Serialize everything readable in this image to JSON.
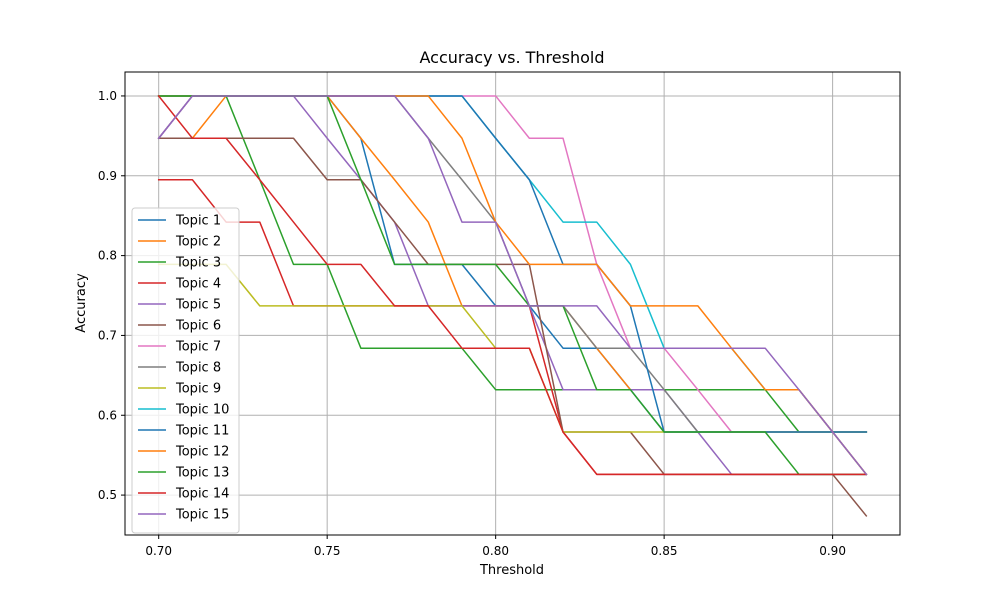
{
  "chart_data": {
    "type": "line",
    "title": "Accuracy vs. Threshold",
    "xlabel": "Threshold",
    "ylabel": "Accuracy",
    "xlim": [
      0.69,
      0.92
    ],
    "ylim": [
      0.45,
      1.03
    ],
    "xticks": [
      "0.70",
      "0.75",
      "0.80",
      "0.85",
      "0.90"
    ],
    "yticks": [
      "0.5",
      "0.6",
      "0.7",
      "0.8",
      "0.9",
      "1.0"
    ],
    "grid": true,
    "legend_position": "left",
    "x": [
      0.7,
      0.71,
      0.72,
      0.73,
      0.74,
      0.75,
      0.76,
      0.77,
      0.78,
      0.79,
      0.8,
      0.81,
      0.82,
      0.83,
      0.84,
      0.85,
      0.86,
      0.87,
      0.88,
      0.89,
      0.9,
      0.91
    ],
    "series": [
      {
        "name": "Topic 1",
        "color": "#1f77b4",
        "values": [
          1.0,
          1.0,
          1.0,
          1.0,
          1.0,
          1.0,
          0.947,
          0.789,
          0.789,
          0.789,
          0.737,
          0.737,
          0.684,
          0.684,
          0.632,
          0.579,
          0.579,
          0.579,
          0.579,
          0.579,
          0.579,
          0.579
        ]
      },
      {
        "name": "Topic 2",
        "color": "#ff7f0e",
        "values": [
          0.947,
          0.947,
          1.0,
          1.0,
          1.0,
          1.0,
          0.947,
          0.895,
          0.842,
          0.737,
          0.737,
          0.737,
          0.737,
          0.684,
          0.632,
          0.632,
          0.632,
          0.632,
          0.632,
          0.632,
          0.579,
          0.526
        ]
      },
      {
        "name": "Topic 3",
        "color": "#2ca02c",
        "values": [
          1.0,
          1.0,
          1.0,
          0.895,
          0.789,
          0.789,
          0.684,
          0.684,
          0.684,
          0.684,
          0.632,
          0.632,
          0.632,
          0.632,
          0.632,
          0.632,
          0.632,
          0.632,
          0.632,
          0.579,
          0.579,
          0.579
        ]
      },
      {
        "name": "Topic 4",
        "color": "#d62728",
        "values": [
          0.895,
          0.895,
          0.842,
          0.842,
          0.737,
          0.737,
          0.737,
          0.737,
          0.737,
          0.737,
          0.737,
          0.737,
          0.579,
          0.526,
          0.526,
          0.526,
          0.526,
          0.526,
          0.526,
          0.526,
          0.526,
          0.526
        ]
      },
      {
        "name": "Topic 5",
        "color": "#9467bd",
        "values": [
          0.947,
          1.0,
          1.0,
          1.0,
          1.0,
          0.947,
          0.895,
          0.842,
          0.737,
          0.737,
          0.737,
          0.737,
          0.632,
          0.632,
          0.632,
          0.632,
          0.579,
          0.526,
          0.526,
          0.526,
          0.526,
          0.526
        ]
      },
      {
        "name": "Topic 6",
        "color": "#8c564b",
        "values": [
          0.947,
          0.947,
          0.947,
          0.947,
          0.947,
          0.895,
          0.895,
          0.842,
          0.789,
          0.789,
          0.789,
          0.789,
          0.579,
          0.579,
          0.579,
          0.526,
          0.526,
          0.526,
          0.526,
          0.526,
          0.526,
          0.474
        ]
      },
      {
        "name": "Topic 7",
        "color": "#e377c2",
        "values": [
          0.947,
          1.0,
          1.0,
          1.0,
          1.0,
          1.0,
          1.0,
          1.0,
          1.0,
          1.0,
          1.0,
          0.947,
          0.947,
          0.789,
          0.684,
          0.684,
          0.632,
          0.579,
          0.579,
          0.579,
          0.579,
          0.579
        ]
      },
      {
        "name": "Topic 8",
        "color": "#7f7f7f",
        "values": [
          0.947,
          1.0,
          1.0,
          1.0,
          1.0,
          1.0,
          1.0,
          1.0,
          0.947,
          0.895,
          0.842,
          0.737,
          0.737,
          0.684,
          0.684,
          0.632,
          0.579,
          0.579,
          0.579,
          0.579,
          0.579,
          0.579
        ]
      },
      {
        "name": "Topic 9",
        "color": "#bcbd22",
        "values": [
          0.789,
          0.789,
          0.789,
          0.737,
          0.737,
          0.737,
          0.737,
          0.737,
          0.737,
          0.737,
          0.684,
          0.684,
          0.579,
          0.579,
          0.579,
          0.579,
          0.579,
          0.579,
          0.579,
          0.579,
          0.579,
          0.579
        ]
      },
      {
        "name": "Topic 10",
        "color": "#17becf",
        "values": [
          1.0,
          1.0,
          1.0,
          1.0,
          1.0,
          1.0,
          1.0,
          1.0,
          1.0,
          1.0,
          0.947,
          0.895,
          0.842,
          0.842,
          0.789,
          0.684,
          0.684,
          0.684,
          0.632,
          0.632,
          0.579,
          0.526
        ]
      },
      {
        "name": "Topic 11",
        "color": "#1f77b4",
        "values": [
          1.0,
          1.0,
          1.0,
          1.0,
          1.0,
          1.0,
          1.0,
          1.0,
          1.0,
          1.0,
          0.947,
          0.895,
          0.789,
          0.789,
          0.737,
          0.579,
          0.579,
          0.579,
          0.579,
          0.579,
          0.579,
          0.579
        ]
      },
      {
        "name": "Topic 12",
        "color": "#ff7f0e",
        "values": [
          1.0,
          1.0,
          1.0,
          1.0,
          1.0,
          1.0,
          1.0,
          1.0,
          1.0,
          0.947,
          0.842,
          0.789,
          0.789,
          0.789,
          0.737,
          0.737,
          0.737,
          0.684,
          0.632,
          0.632,
          0.579,
          0.526
        ]
      },
      {
        "name": "Topic 13",
        "color": "#2ca02c",
        "values": [
          1.0,
          1.0,
          1.0,
          1.0,
          1.0,
          1.0,
          0.895,
          0.789,
          0.789,
          0.789,
          0.789,
          0.737,
          0.737,
          0.632,
          0.632,
          0.579,
          0.579,
          0.579,
          0.579,
          0.526,
          0.526,
          0.526
        ]
      },
      {
        "name": "Topic 14",
        "color": "#d62728",
        "values": [
          1.0,
          0.947,
          0.947,
          0.895,
          0.842,
          0.789,
          0.789,
          0.737,
          0.737,
          0.684,
          0.684,
          0.684,
          0.579,
          0.526,
          0.526,
          0.526,
          0.526,
          0.526,
          0.526,
          0.526,
          0.526,
          0.526
        ]
      },
      {
        "name": "Topic 15",
        "color": "#9467bd",
        "values": [
          0.947,
          1.0,
          1.0,
          1.0,
          1.0,
          1.0,
          1.0,
          1.0,
          0.947,
          0.842,
          0.842,
          0.737,
          0.737,
          0.737,
          0.684,
          0.684,
          0.684,
          0.684,
          0.684,
          0.632,
          0.579,
          0.526
        ]
      }
    ]
  }
}
